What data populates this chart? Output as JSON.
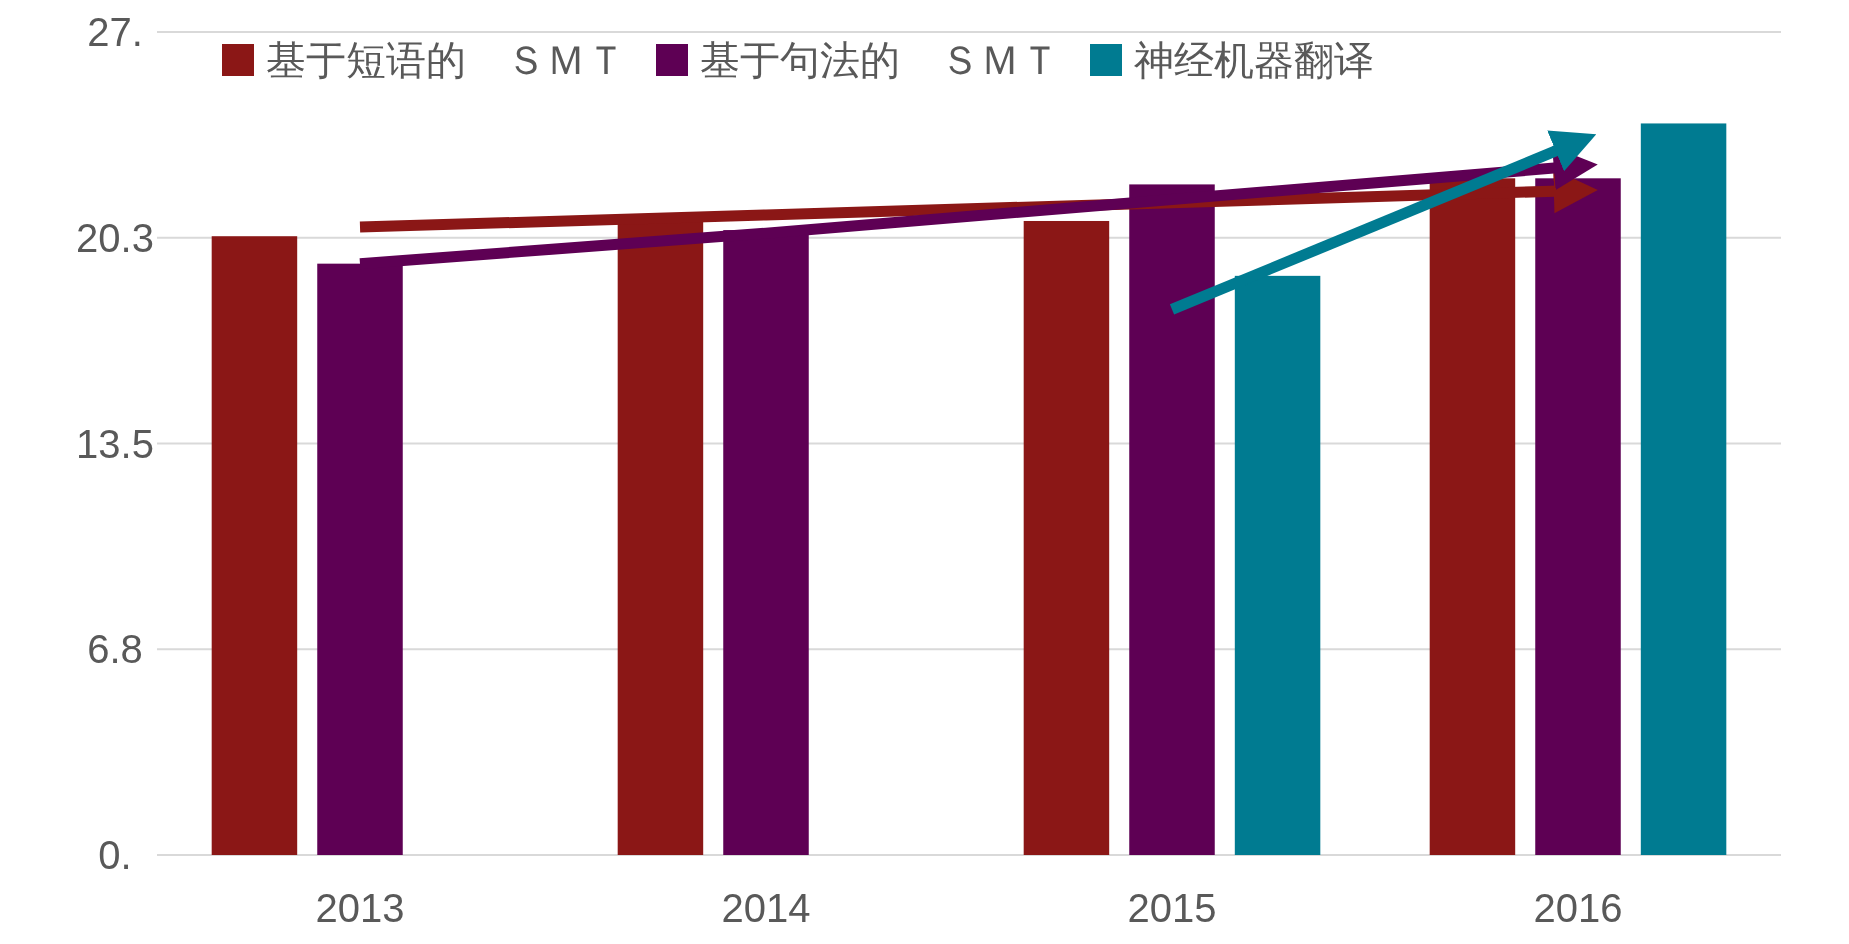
{
  "chart_data": {
    "type": "bar",
    "categories": [
      "2013",
      "2014",
      "2015",
      "2016"
    ],
    "series": [
      {
        "name": "基于短语的　ＳＭＴ",
        "color": "#8b1716",
        "values": [
          20.3,
          20.8,
          20.8,
          22.2
        ]
      },
      {
        "name": "基于句法的　ＳＭＴ",
        "color": "#5e0054",
        "values": [
          19.4,
          20.5,
          22.0,
          22.2
        ]
      },
      {
        "name": "神经机器翻译",
        "color": "#007b91",
        "values": [
          null,
          null,
          19.0,
          24.0
        ]
      },
      {
        "type": "line",
        "color": "#8b1716",
        "values": [
          20.6,
          21.0,
          21.4,
          21.8
        ]
      },
      {
        "type": "line",
        "color": "#5e0054",
        "values": [
          19.4,
          20.4,
          21.5,
          22.6
        ]
      },
      {
        "type": "line",
        "color": "#007b91",
        "values": [
          null,
          null,
          17.9,
          23.4
        ]
      }
    ],
    "ylim": [
      0,
      27
    ],
    "yticks": [
      {
        "value": 0,
        "label": "0."
      },
      {
        "value": 6.75,
        "label": "6.8"
      },
      {
        "value": 13.5,
        "label": "13.5"
      },
      {
        "value": 20.25,
        "label": "20.3"
      },
      {
        "value": 27,
        "label": "27."
      }
    ],
    "grid": "y",
    "legend": "top left"
  }
}
